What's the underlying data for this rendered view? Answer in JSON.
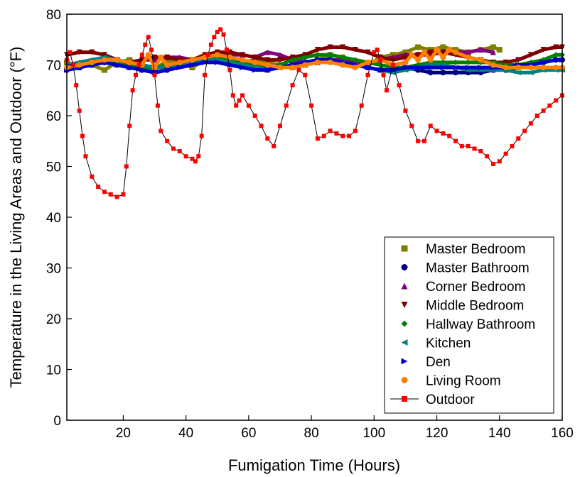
{
  "chart_data": {
    "type": "scatter",
    "xlabel": "Fumigation Time (Hours)",
    "ylabel": "Temperature in the Living Areas and Outdoor (°F)",
    "xlim": [
      2,
      160
    ],
    "ylim": [
      0,
      80
    ],
    "x_ticks": [
      20,
      40,
      60,
      80,
      100,
      120,
      140,
      160
    ],
    "y_ticks": [
      0,
      10,
      20,
      30,
      40,
      50,
      60,
      70,
      80
    ],
    "grid": false,
    "legend_position": "bottom-right",
    "series": [
      {
        "name": "Master Bedroom",
        "marker": "square",
        "color": "#808000",
        "x": [
          2,
          6,
          10,
          14,
          18,
          22,
          26,
          30,
          34,
          38,
          42,
          46,
          50,
          54,
          58,
          62,
          66,
          70,
          74,
          78,
          82,
          86,
          90,
          94,
          98,
          102,
          106,
          110,
          114,
          118,
          122,
          126,
          130,
          134,
          138,
          140
        ],
        "y": [
          70.5,
          69.5,
          70,
          69,
          70.5,
          71,
          70,
          69,
          71,
          70.5,
          69.5,
          71,
          71.5,
          71,
          70.5,
          71,
          70.5,
          70,
          69.5,
          70,
          71,
          72,
          71.5,
          70.5,
          70,
          71.5,
          72,
          72.5,
          73.5,
          73,
          73.5,
          73,
          72.5,
          73,
          73.5,
          73
        ]
      },
      {
        "name": "Master Bathroom",
        "marker": "circle",
        "color": "#000080",
        "x": [
          2,
          6,
          10,
          14,
          18,
          22,
          26,
          30,
          34,
          38,
          42,
          46,
          50,
          54,
          58,
          62,
          66,
          70,
          74,
          78,
          82,
          86,
          90,
          94,
          98,
          102,
          106,
          110,
          114,
          118,
          122,
          126,
          130,
          134,
          138,
          142,
          146,
          150,
          154,
          158,
          160
        ],
        "y": [
          69,
          69.5,
          70,
          70.5,
          70,
          69.5,
          69,
          68.5,
          69,
          70,
          70.5,
          71,
          71,
          70.5,
          70,
          69.5,
          69,
          69.5,
          70,
          70.5,
          71,
          71,
          70.5,
          70,
          69.5,
          69,
          69,
          69.5,
          69,
          68.5,
          68.5,
          68.5,
          68.5,
          68.5,
          69,
          69,
          69.5,
          70,
          70.5,
          71,
          71
        ]
      },
      {
        "name": "Corner Bedroom",
        "marker": "triangle-up",
        "color": "#800080",
        "x": [
          2,
          6,
          10,
          14,
          18,
          22,
          26,
          30,
          34,
          38,
          42,
          46,
          50,
          54,
          58,
          62,
          66,
          70,
          74,
          78,
          82,
          86,
          90,
          94,
          98,
          102,
          106,
          110,
          114,
          118,
          122,
          126,
          130,
          134,
          138
        ],
        "y": [
          70,
          70.5,
          71,
          71,
          70.5,
          70.5,
          71,
          71,
          71.5,
          71.5,
          71,
          71.5,
          72,
          72,
          72,
          71.5,
          72.5,
          72,
          71,
          70.5,
          70.5,
          71,
          71,
          70.5,
          70,
          71,
          71.5,
          72,
          72,
          72,
          72.5,
          72.5,
          72.5,
          73,
          72.5
        ]
      },
      {
        "name": "Middle Bedroom",
        "marker": "triangle-down",
        "color": "#800000",
        "x": [
          2,
          6,
          10,
          14,
          18,
          22,
          26,
          30,
          34,
          38,
          42,
          46,
          50,
          54,
          58,
          62,
          66,
          70,
          74,
          78,
          82,
          86,
          90,
          94,
          98,
          102,
          106,
          110,
          114,
          118,
          122,
          126,
          130,
          134,
          138,
          142,
          146,
          150,
          154,
          158,
          160
        ],
        "y": [
          72,
          72.5,
          72.5,
          72,
          71,
          70.5,
          71,
          71.5,
          71.5,
          71,
          71,
          72,
          72.5,
          72.5,
          72,
          71.5,
          71,
          71,
          71.5,
          72,
          73,
          73.5,
          73.5,
          73,
          72.5,
          71.5,
          71,
          71.5,
          72,
          72.5,
          72.5,
          72,
          71.5,
          71,
          70.5,
          70.5,
          71,
          72,
          73,
          73.5,
          73.5
        ]
      },
      {
        "name": "Hallway Bathroom",
        "marker": "diamond",
        "color": "#008000",
        "x": [
          2,
          6,
          10,
          14,
          18,
          22,
          26,
          30,
          34,
          38,
          42,
          46,
          50,
          54,
          58,
          62,
          66,
          70,
          74,
          78,
          82,
          86,
          90,
          94,
          98,
          102,
          106,
          110,
          114,
          118,
          122,
          126,
          130,
          134,
          138,
          142,
          146,
          150,
          154,
          158,
          160
        ],
        "y": [
          69.5,
          70,
          70.5,
          71,
          70.5,
          70,
          69.5,
          69.5,
          70,
          70.5,
          71,
          71.5,
          71.5,
          71,
          70.5,
          70,
          69.5,
          70,
          71,
          71.5,
          72,
          72,
          71.5,
          71,
          70.5,
          70,
          69.5,
          69.5,
          70,
          70.5,
          70.5,
          70.5,
          70.5,
          70.5,
          70.5,
          70,
          70,
          70.5,
          71,
          72,
          72
        ]
      },
      {
        "name": "Kitchen",
        "marker": "triangle-left",
        "color": "#008080",
        "x": [
          2,
          6,
          10,
          14,
          18,
          22,
          26,
          30,
          34,
          38,
          42,
          46,
          50,
          54,
          58,
          62,
          66,
          70,
          74,
          78,
          82,
          86,
          90,
          94,
          98,
          102,
          106,
          110,
          114,
          118,
          122,
          126,
          130,
          134,
          138,
          142,
          146,
          150,
          154,
          158,
          160
        ],
        "y": [
          70,
          70.5,
          71,
          71.5,
          71,
          70.5,
          70,
          69.5,
          69.5,
          70,
          70.5,
          71,
          71,
          70.5,
          70,
          69.5,
          69,
          69.5,
          70,
          70.5,
          71,
          71,
          70.5,
          70,
          69.5,
          69,
          68.5,
          69,
          69.5,
          70,
          70,
          69.5,
          69,
          69,
          69,
          69,
          68.5,
          68.5,
          69,
          69,
          69
        ]
      },
      {
        "name": "Den",
        "marker": "triangle-right",
        "color": "#0000cc",
        "x": [
          2,
          6,
          10,
          14,
          18,
          22,
          26,
          30,
          34,
          38,
          42,
          46,
          50,
          54,
          58,
          62,
          66,
          70,
          74,
          78,
          82,
          86,
          90,
          94,
          98,
          102,
          106,
          110,
          114,
          118,
          122,
          126,
          130,
          134,
          138,
          142,
          146,
          150,
          154,
          158,
          160
        ],
        "y": [
          69,
          69.5,
          70,
          70.5,
          70,
          69.5,
          69,
          68.5,
          69,
          69.5,
          70,
          70.5,
          70.5,
          70,
          69.5,
          69,
          69,
          69.5,
          70,
          70.5,
          71,
          71,
          70.5,
          70,
          69.5,
          69,
          69,
          69.5,
          69.5,
          69.5,
          69.5,
          69.5,
          69.5,
          69.5,
          69.5,
          69.5,
          70,
          70,
          70.5,
          71,
          71
        ]
      },
      {
        "name": "Living Room",
        "marker": "circle",
        "color": "#ff8000",
        "x": [
          2,
          6,
          10,
          14,
          18,
          22,
          26,
          28,
          30,
          32,
          34,
          38,
          42,
          46,
          50,
          54,
          58,
          62,
          66,
          70,
          74,
          78,
          82,
          86,
          90,
          94,
          98,
          102,
          106,
          110,
          112,
          114,
          116,
          118,
          120,
          122,
          124,
          126,
          130,
          134,
          138,
          142,
          146,
          150,
          154,
          158,
          160
        ],
        "y": [
          69.5,
          70,
          70.5,
          71,
          71,
          70.5,
          70,
          72,
          69.5,
          71.5,
          70,
          70.5,
          71,
          71.5,
          72,
          71.5,
          71,
          70.5,
          70,
          69.5,
          69.5,
          70,
          70.5,
          70.5,
          70,
          69.5,
          70.5,
          71,
          70,
          70.5,
          72,
          71,
          72.5,
          71,
          73,
          71.5,
          73,
          72.5,
          71.5,
          71,
          70,
          69.5,
          69.5,
          69.5,
          69.5,
          69.5,
          69.5
        ]
      },
      {
        "name": "Outdoor",
        "marker": "square",
        "color": "#ff0000",
        "line": true,
        "x": [
          2,
          3,
          4,
          5,
          6,
          7,
          8,
          10,
          12,
          14,
          16,
          18,
          20,
          21,
          22,
          23,
          24,
          25,
          26,
          27,
          28,
          29,
          30,
          31,
          32,
          34,
          36,
          38,
          40,
          42,
          43,
          44,
          45,
          46,
          47,
          48,
          49,
          50,
          51,
          52,
          53,
          54,
          55,
          56,
          57,
          58,
          60,
          62,
          64,
          66,
          68,
          70,
          72,
          74,
          76,
          78,
          80,
          82,
          84,
          86,
          88,
          90,
          92,
          94,
          96,
          98,
          100,
          101,
          102,
          103,
          104,
          106,
          108,
          110,
          112,
          114,
          116,
          118,
          120,
          122,
          124,
          126,
          128,
          130,
          132,
          134,
          136,
          138,
          140,
          142,
          144,
          146,
          148,
          150,
          152,
          154,
          156,
          158,
          160
        ],
        "y": [
          71,
          72.5,
          70,
          66,
          61,
          56,
          52,
          48,
          46,
          45,
          44.5,
          44,
          44.5,
          50,
          58,
          65,
          68,
          70,
          72,
          74,
          75.5,
          73,
          68,
          62,
          57,
          55,
          53.5,
          53,
          52,
          51.5,
          51,
          52,
          56,
          68,
          72,
          74,
          75.5,
          76.5,
          77,
          76,
          73,
          69,
          64,
          62,
          63,
          64,
          62,
          60,
          58,
          55.5,
          54,
          58,
          62,
          66,
          69,
          68,
          62,
          55.5,
          56,
          57,
          56.5,
          56,
          56,
          57,
          62,
          68,
          72.5,
          73,
          71,
          68,
          65,
          70,
          66,
          61,
          58,
          55,
          55,
          58,
          57,
          56.5,
          56,
          55,
          54,
          54,
          53.5,
          53,
          52,
          50.5,
          51,
          52.5,
          54,
          55.5,
          57,
          58.5,
          60,
          61,
          62,
          63,
          64
        ]
      }
    ]
  }
}
